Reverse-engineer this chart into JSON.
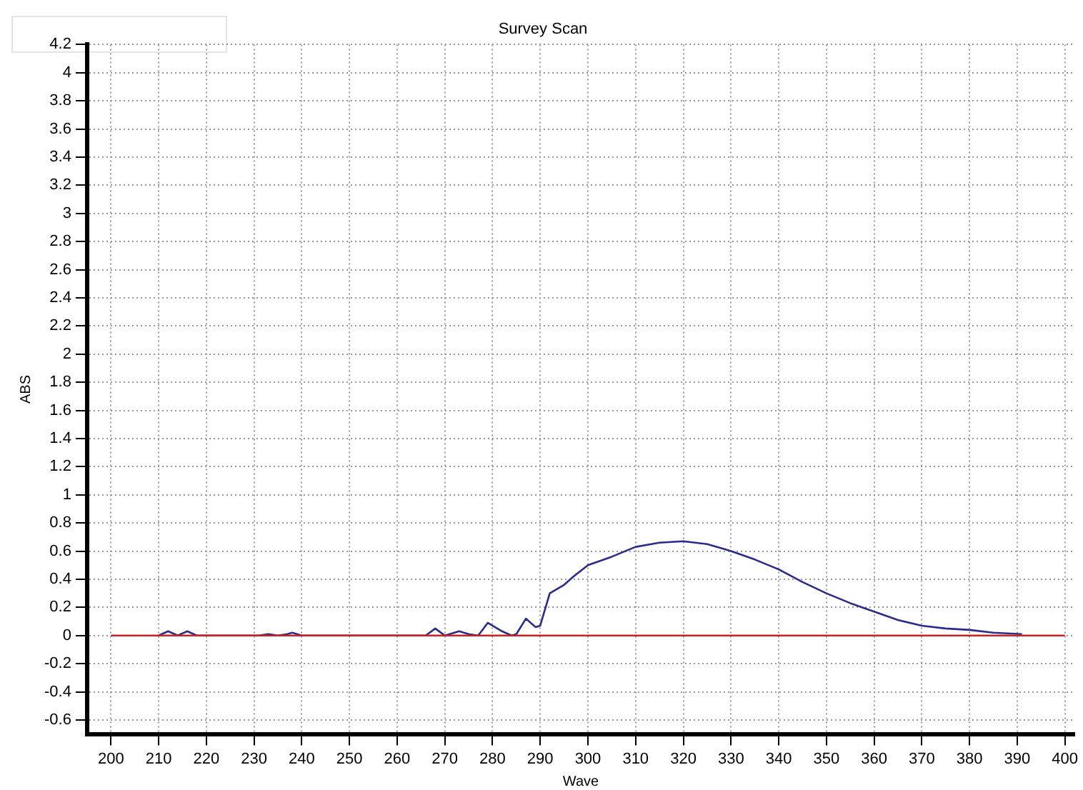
{
  "chart_data": {
    "type": "line",
    "title": "Survey Scan",
    "xlabel": "Wave",
    "ylabel": "ABS",
    "xlim": [
      195,
      402
    ],
    "xticks": [
      200,
      210,
      220,
      230,
      240,
      250,
      260,
      270,
      280,
      290,
      300,
      310,
      320,
      330,
      340,
      350,
      360,
      370,
      380,
      390,
      400
    ],
    "ylim": [
      -0.7,
      4.2
    ],
    "yticks": [
      -0.6,
      -0.4,
      -0.2,
      0,
      0.2,
      0.4,
      0.6,
      0.8,
      1,
      1.2,
      1.4,
      1.6,
      1.8,
      2,
      2.2,
      2.4,
      2.6,
      2.8,
      3,
      3.2,
      3.4,
      3.6,
      3.8,
      4,
      4.2
    ],
    "grid": true,
    "legend": false,
    "marker": "none",
    "line_style": "solid",
    "series": [
      {
        "color": "#2b2b8c",
        "x": [
          210,
          212,
          214,
          216,
          218,
          231,
          233,
          235,
          237,
          238,
          240,
          266,
          268,
          270,
          271,
          273,
          275,
          277,
          279,
          282,
          284,
          285,
          287,
          289,
          290,
          292,
          295,
          297,
          300,
          305,
          310,
          315,
          320,
          325,
          330,
          335,
          340,
          345,
          350,
          355,
          360,
          365,
          370,
          375,
          380,
          385,
          391
        ],
        "values": [
          0,
          0.03,
          0,
          0.03,
          0,
          0,
          0.01,
          0,
          0.01,
          0.02,
          0,
          0,
          0.05,
          0,
          0.01,
          0.03,
          0.01,
          0,
          0.09,
          0.03,
          0,
          0.01,
          0.12,
          0.06,
          0.07,
          0.3,
          0.36,
          0.42,
          0.5,
          0.56,
          0.63,
          0.66,
          0.67,
          0.65,
          0.6,
          0.54,
          0.47,
          0.38,
          0.3,
          0.23,
          0.17,
          0.11,
          0.07,
          0.05,
          0.04,
          0.02,
          0.01
        ]
      },
      {
        "color": "#cc2222",
        "x": [
          200,
          400
        ],
        "values": [
          0,
          0
        ]
      }
    ]
  }
}
